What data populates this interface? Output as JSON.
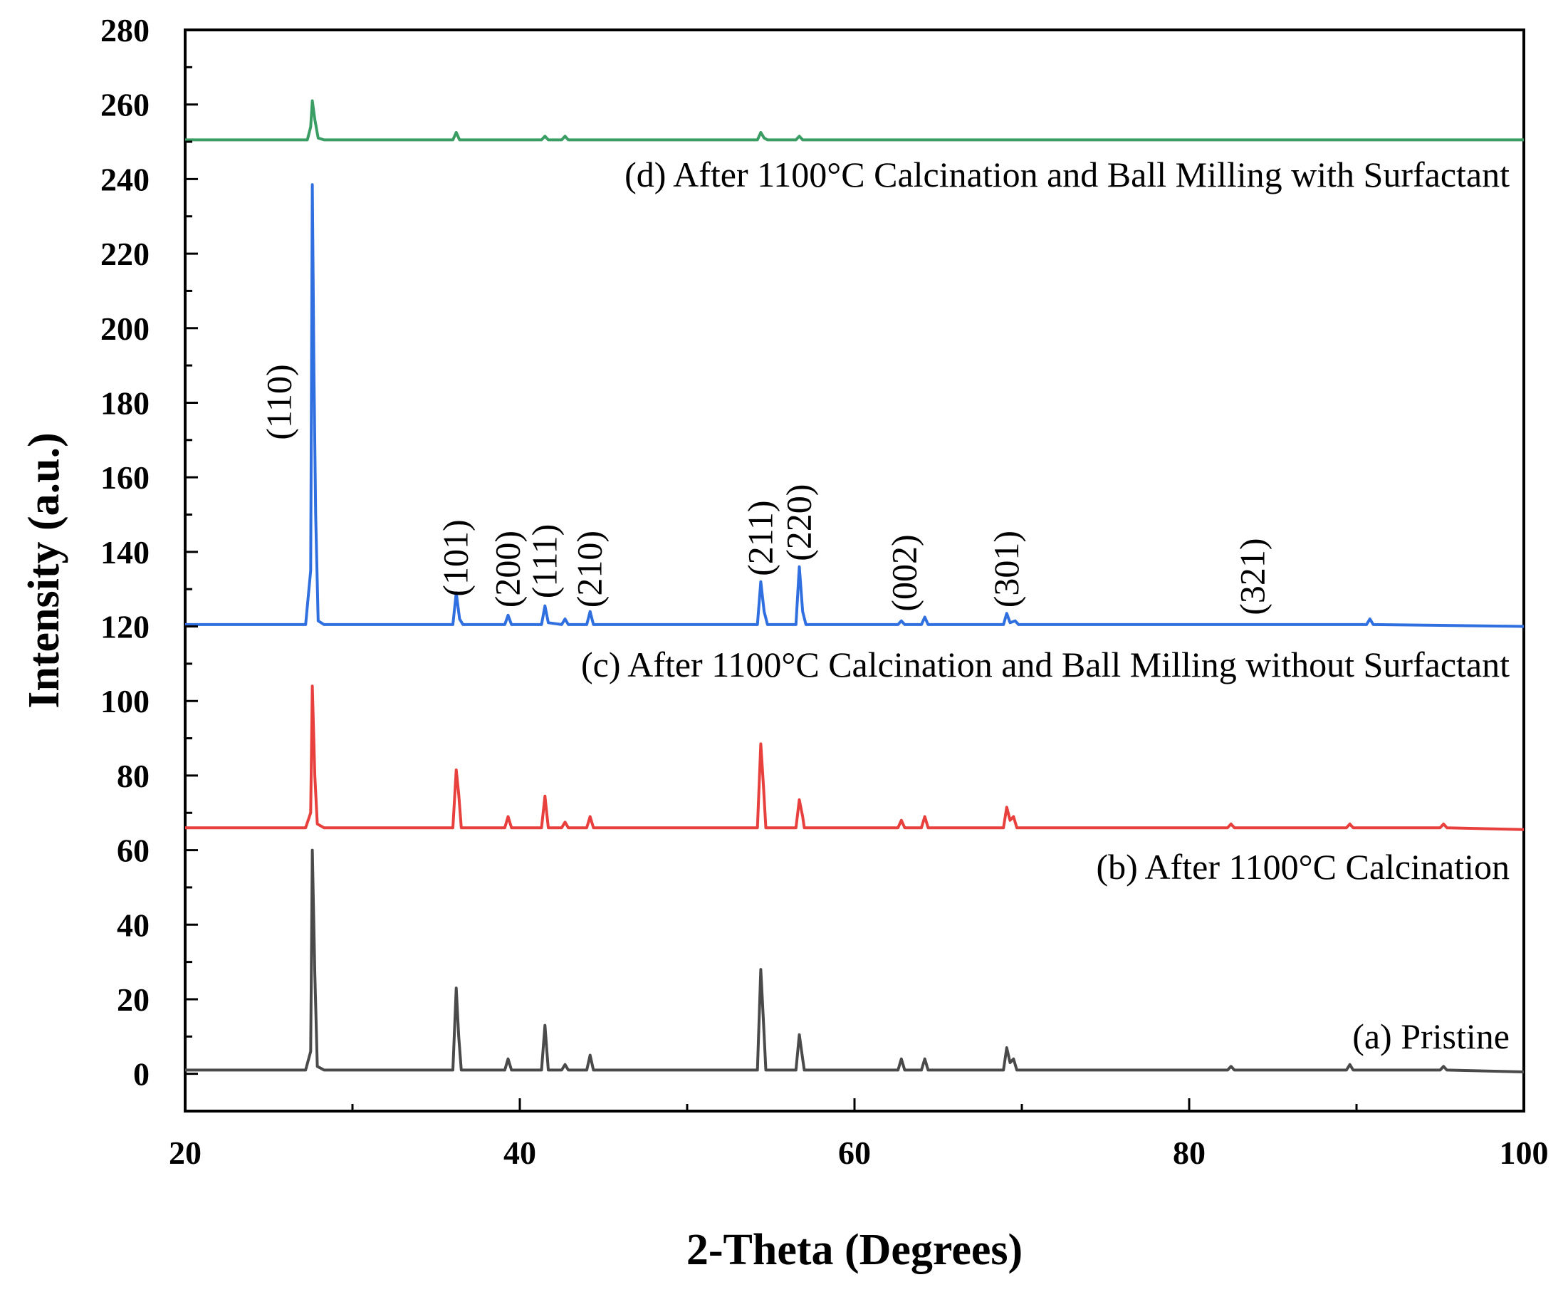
{
  "chart_data": {
    "type": "line",
    "title": "",
    "xlabel": "2-Theta (Degrees)",
    "ylabel": "Intensity (a.u.)",
    "xlim": [
      20,
      100
    ],
    "ylim": [
      -10,
      280
    ],
    "x_ticks": [
      20,
      40,
      60,
      80,
      100
    ],
    "y_ticks": [
      0,
      20,
      40,
      60,
      80,
      100,
      120,
      140,
      160,
      180,
      200,
      220,
      240,
      260,
      280
    ],
    "grid": false,
    "series": [
      {
        "name": "(a) Pristine",
        "color": "#4a4a4a",
        "baseline": 1,
        "points": [
          [
            20,
            1
          ],
          [
            27.2,
            1
          ],
          [
            27.5,
            6
          ],
          [
            27.6,
            60
          ],
          [
            27.75,
            27
          ],
          [
            27.9,
            2
          ],
          [
            28.3,
            1
          ],
          [
            36.0,
            1
          ],
          [
            36.2,
            23
          ],
          [
            36.35,
            10
          ],
          [
            36.5,
            1
          ],
          [
            39.1,
            1
          ],
          [
            39.3,
            4
          ],
          [
            39.5,
            1
          ],
          [
            41.3,
            1
          ],
          [
            41.5,
            13
          ],
          [
            41.7,
            1
          ],
          [
            42.5,
            1
          ],
          [
            42.7,
            2.5
          ],
          [
            42.9,
            1
          ],
          [
            44.0,
            1
          ],
          [
            44.2,
            5
          ],
          [
            44.4,
            1
          ],
          [
            54.2,
            1
          ],
          [
            54.4,
            28
          ],
          [
            54.55,
            15
          ],
          [
            54.7,
            1
          ],
          [
            56.5,
            1
          ],
          [
            56.7,
            10.5
          ],
          [
            56.9,
            4
          ],
          [
            57.0,
            1
          ],
          [
            62.6,
            1
          ],
          [
            62.8,
            4
          ],
          [
            63.0,
            1
          ],
          [
            64.0,
            1
          ],
          [
            64.2,
            4
          ],
          [
            64.4,
            1
          ],
          [
            68.9,
            1
          ],
          [
            69.1,
            7
          ],
          [
            69.3,
            3
          ],
          [
            69.5,
            4
          ],
          [
            69.7,
            1
          ],
          [
            82.3,
            1
          ],
          [
            82.5,
            2
          ],
          [
            82.7,
            1
          ],
          [
            89.4,
            1
          ],
          [
            89.6,
            2.5
          ],
          [
            89.8,
            1
          ],
          [
            95.0,
            1
          ],
          [
            95.2,
            2
          ],
          [
            95.4,
            1
          ],
          [
            100,
            0.5
          ]
        ],
        "peak_labels": []
      },
      {
        "name": "(b) After 1100°C Calcination",
        "color": "#e8403c",
        "baseline": 66,
        "points": [
          [
            20,
            66
          ],
          [
            27.2,
            66
          ],
          [
            27.5,
            70
          ],
          [
            27.6,
            104
          ],
          [
            27.75,
            80
          ],
          [
            27.9,
            67
          ],
          [
            28.3,
            66
          ],
          [
            36.0,
            66
          ],
          [
            36.2,
            81.5
          ],
          [
            36.35,
            75
          ],
          [
            36.5,
            66
          ],
          [
            39.1,
            66
          ],
          [
            39.3,
            69
          ],
          [
            39.5,
            66
          ],
          [
            41.3,
            66
          ],
          [
            41.5,
            74.5
          ],
          [
            41.7,
            66
          ],
          [
            42.5,
            66
          ],
          [
            42.7,
            67.5
          ],
          [
            42.9,
            66
          ],
          [
            44.0,
            66
          ],
          [
            44.2,
            69
          ],
          [
            44.4,
            66
          ],
          [
            54.2,
            66
          ],
          [
            54.4,
            88.5
          ],
          [
            54.55,
            78
          ],
          [
            54.7,
            66
          ],
          [
            56.5,
            66
          ],
          [
            56.7,
            73.5
          ],
          [
            56.9,
            69
          ],
          [
            57.0,
            66
          ],
          [
            62.6,
            66
          ],
          [
            62.8,
            68
          ],
          [
            63.0,
            66
          ],
          [
            64.0,
            66
          ],
          [
            64.2,
            69
          ],
          [
            64.4,
            66
          ],
          [
            68.9,
            66
          ],
          [
            69.1,
            71.5
          ],
          [
            69.3,
            68
          ],
          [
            69.5,
            69
          ],
          [
            69.7,
            66
          ],
          [
            82.3,
            66
          ],
          [
            82.5,
            67
          ],
          [
            82.7,
            66
          ],
          [
            89.4,
            66
          ],
          [
            89.6,
            67
          ],
          [
            89.8,
            66
          ],
          [
            95.0,
            66
          ],
          [
            95.2,
            67
          ],
          [
            95.4,
            66
          ],
          [
            100,
            65.5
          ]
        ],
        "peak_labels": []
      },
      {
        "name": "(c) After 1100°C Calcination and Ball Milling without Surfactant",
        "color": "#2f6fe0",
        "baseline": 120.5,
        "points": [
          [
            20,
            120.5
          ],
          [
            27.2,
            120.5
          ],
          [
            27.5,
            135
          ],
          [
            27.6,
            238.5
          ],
          [
            27.7,
            188
          ],
          [
            27.8,
            150
          ],
          [
            27.95,
            121.5
          ],
          [
            28.3,
            120.5
          ],
          [
            36.0,
            120.5
          ],
          [
            36.2,
            129
          ],
          [
            36.4,
            122
          ],
          [
            36.6,
            120.5
          ],
          [
            39.1,
            120.5
          ],
          [
            39.3,
            123
          ],
          [
            39.5,
            120.5
          ],
          [
            41.3,
            120.5
          ],
          [
            41.5,
            125.5
          ],
          [
            41.7,
            121
          ],
          [
            42.5,
            120.5
          ],
          [
            42.7,
            122
          ],
          [
            42.9,
            120.5
          ],
          [
            44.0,
            120.5
          ],
          [
            44.2,
            124
          ],
          [
            44.4,
            120.5
          ],
          [
            54.2,
            120.5
          ],
          [
            54.4,
            132
          ],
          [
            54.6,
            124
          ],
          [
            54.8,
            120.5
          ],
          [
            56.5,
            120.5
          ],
          [
            56.7,
            136
          ],
          [
            56.9,
            124
          ],
          [
            57.1,
            120.5
          ],
          [
            62.6,
            120.5
          ],
          [
            62.8,
            121.5
          ],
          [
            63.0,
            120.5
          ],
          [
            64.0,
            120.5
          ],
          [
            64.2,
            122.5
          ],
          [
            64.4,
            120.5
          ],
          [
            68.9,
            120.5
          ],
          [
            69.1,
            123.5
          ],
          [
            69.3,
            121
          ],
          [
            69.6,
            121.5
          ],
          [
            69.8,
            120.5
          ],
          [
            90.6,
            120.5
          ],
          [
            90.8,
            122
          ],
          [
            91.0,
            120.5
          ],
          [
            100,
            120
          ]
        ],
        "peak_labels": [
          {
            "text": "(110)",
            "x": 27.6
          },
          {
            "text": "(101)",
            "x": 36.2
          },
          {
            "text": "(200)",
            "x": 39.3
          },
          {
            "text": "(111)",
            "x": 41.5
          },
          {
            "text": "(210)",
            "x": 44.2
          },
          {
            "text": "(211)",
            "x": 54.4
          },
          {
            "text": "(220)",
            "x": 56.7
          },
          {
            "text": "(002)",
            "x": 63.0
          },
          {
            "text": "(301)",
            "x": 69.1
          },
          {
            "text": "(321)",
            "x": 83.8
          }
        ]
      },
      {
        "name": "(d) After 1100°C Calcination and Ball Milling with Surfactant",
        "color": "#3a9e64",
        "baseline": 250.5,
        "points": [
          [
            20,
            250.5
          ],
          [
            27.3,
            250.5
          ],
          [
            27.5,
            254
          ],
          [
            27.6,
            261
          ],
          [
            27.75,
            256
          ],
          [
            27.95,
            251
          ],
          [
            28.3,
            250.5
          ],
          [
            36.0,
            250.5
          ],
          [
            36.2,
            252.5
          ],
          [
            36.4,
            250.5
          ],
          [
            41.3,
            250.5
          ],
          [
            41.5,
            251.5
          ],
          [
            41.7,
            250.5
          ],
          [
            42.5,
            250.5
          ],
          [
            42.7,
            251.5
          ],
          [
            42.9,
            250.5
          ],
          [
            54.2,
            250.5
          ],
          [
            54.4,
            252.5
          ],
          [
            54.6,
            251
          ],
          [
            54.8,
            250.5
          ],
          [
            56.5,
            250.5
          ],
          [
            56.7,
            251.5
          ],
          [
            56.9,
            250.5
          ],
          [
            100,
            250.5
          ]
        ],
        "peak_labels": []
      }
    ]
  }
}
